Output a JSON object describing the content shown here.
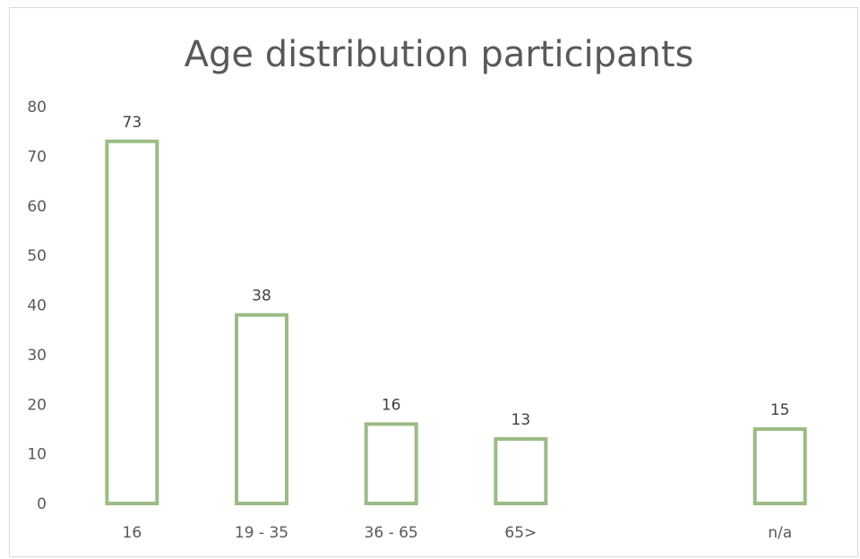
{
  "chart_data": {
    "type": "bar",
    "title": "Age distribution participants",
    "categories": [
      "16",
      "19 - 35",
      "36 - 65",
      "65>",
      "",
      "n/a"
    ],
    "values": [
      73,
      38,
      16,
      13,
      null,
      15
    ],
    "data_labels": [
      "73",
      "38",
      "16",
      "13",
      "",
      "15"
    ],
    "ylim": [
      0,
      80
    ],
    "yticks": [
      "0",
      "10",
      "20",
      "30",
      "40",
      "50",
      "60",
      "70",
      "80"
    ],
    "grid": false,
    "legend": "none",
    "bar_outline_color": "#9bbb85",
    "bar_fill_color": "#ffffff"
  }
}
